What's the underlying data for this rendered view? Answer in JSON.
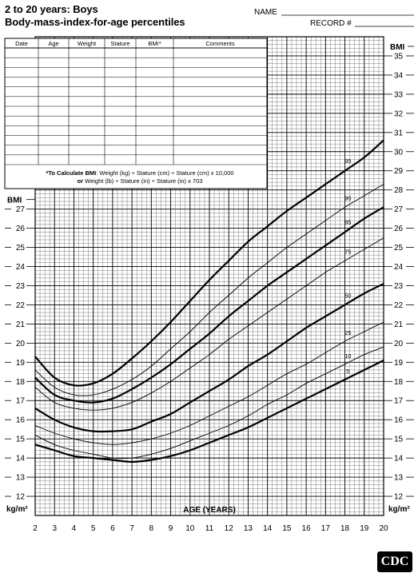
{
  "header": {
    "title_line1": "2 to 20 years: Boys",
    "title_line2": "Body-mass-index-for-age percentiles",
    "name_label": "NAME",
    "record_label": "RECORD #"
  },
  "record_table": {
    "columns": [
      "Date",
      "Age",
      "Weight",
      "Stature",
      "BMI*",
      "Comments"
    ]
  },
  "bmi_note": {
    "line1_bold": "*To Calculate BMI",
    "line1_rest": ": Weight (kg) ÷ Stature (cm) ÷ Stature (cm) x 10,000",
    "line2_bold": "or",
    "line2_rest": " Weight (lb) ÷ Stature (in) ÷ Stature (in) x 703"
  },
  "logo": {
    "text": "CDC"
  },
  "chart_data": {
    "type": "line",
    "xlabel": "AGE (YEARS)",
    "ylabel_left": "BMI",
    "ylabel_right": "BMI",
    "unit_left": "kg/m²",
    "unit_right": "kg/m²",
    "xlim": [
      2,
      20
    ],
    "ylim": [
      11,
      36
    ],
    "xticks": [
      2,
      3,
      4,
      5,
      6,
      7,
      8,
      9,
      10,
      11,
      12,
      13,
      14,
      15,
      16,
      17,
      18,
      19,
      20
    ],
    "yticks_left": [
      12,
      13,
      14,
      15,
      16,
      17,
      18,
      19,
      20,
      21,
      22,
      23,
      24,
      25,
      26,
      27
    ],
    "yticks_right": [
      12,
      13,
      14,
      15,
      16,
      17,
      18,
      19,
      20,
      21,
      22,
      23,
      24,
      25,
      26,
      27,
      28,
      29,
      30,
      31,
      32,
      33,
      34,
      35
    ],
    "grid": true,
    "x": [
      2,
      3,
      4,
      5,
      6,
      7,
      8,
      9,
      10,
      11,
      12,
      13,
      14,
      15,
      16,
      17,
      18,
      19,
      20
    ],
    "series": [
      {
        "name": "95",
        "bold": true,
        "values": [
          19.3,
          18.2,
          17.8,
          17.9,
          18.4,
          19.2,
          20.1,
          21.1,
          22.2,
          23.3,
          24.3,
          25.3,
          26.1,
          26.9,
          27.6,
          28.3,
          29.0,
          29.7,
          30.6
        ]
      },
      {
        "name": "90",
        "bold": false,
        "values": [
          18.6,
          17.7,
          17.3,
          17.3,
          17.6,
          18.1,
          18.8,
          19.7,
          20.6,
          21.6,
          22.5,
          23.4,
          24.2,
          25.0,
          25.7,
          26.4,
          27.1,
          27.7,
          28.3
        ]
      },
      {
        "name": "85",
        "bold": true,
        "values": [
          18.2,
          17.3,
          17.0,
          16.9,
          17.1,
          17.6,
          18.2,
          18.9,
          19.7,
          20.5,
          21.4,
          22.2,
          23.0,
          23.7,
          24.4,
          25.1,
          25.8,
          26.5,
          27.1
        ]
      },
      {
        "name": "75",
        "bold": false,
        "values": [
          17.7,
          16.9,
          16.6,
          16.5,
          16.6,
          16.9,
          17.4,
          18.0,
          18.7,
          19.4,
          20.2,
          20.9,
          21.6,
          22.3,
          23.0,
          23.7,
          24.3,
          24.9,
          25.5
        ]
      },
      {
        "name": "50",
        "bold": true,
        "values": [
          16.6,
          16.0,
          15.6,
          15.4,
          15.4,
          15.5,
          15.9,
          16.3,
          16.9,
          17.5,
          18.1,
          18.8,
          19.4,
          20.1,
          20.8,
          21.4,
          22.0,
          22.6,
          23.1
        ]
      },
      {
        "name": "25",
        "bold": false,
        "values": [
          15.7,
          15.3,
          15.0,
          14.8,
          14.7,
          14.8,
          15.0,
          15.3,
          15.7,
          16.2,
          16.7,
          17.2,
          17.8,
          18.4,
          18.9,
          19.5,
          20.1,
          20.6,
          21.1
        ]
      },
      {
        "name": "10",
        "bold": false,
        "values": [
          15.2,
          14.7,
          14.4,
          14.2,
          14.0,
          14.0,
          14.2,
          14.5,
          14.9,
          15.3,
          15.7,
          16.2,
          16.8,
          17.3,
          17.9,
          18.4,
          18.9,
          19.4,
          19.8
        ]
      },
      {
        "name": "5",
        "bold": true,
        "values": [
          14.7,
          14.4,
          14.1,
          14.0,
          13.9,
          13.8,
          13.9,
          14.1,
          14.4,
          14.8,
          15.2,
          15.6,
          16.1,
          16.6,
          17.1,
          17.6,
          18.1,
          18.6,
          19.1
        ]
      }
    ]
  }
}
